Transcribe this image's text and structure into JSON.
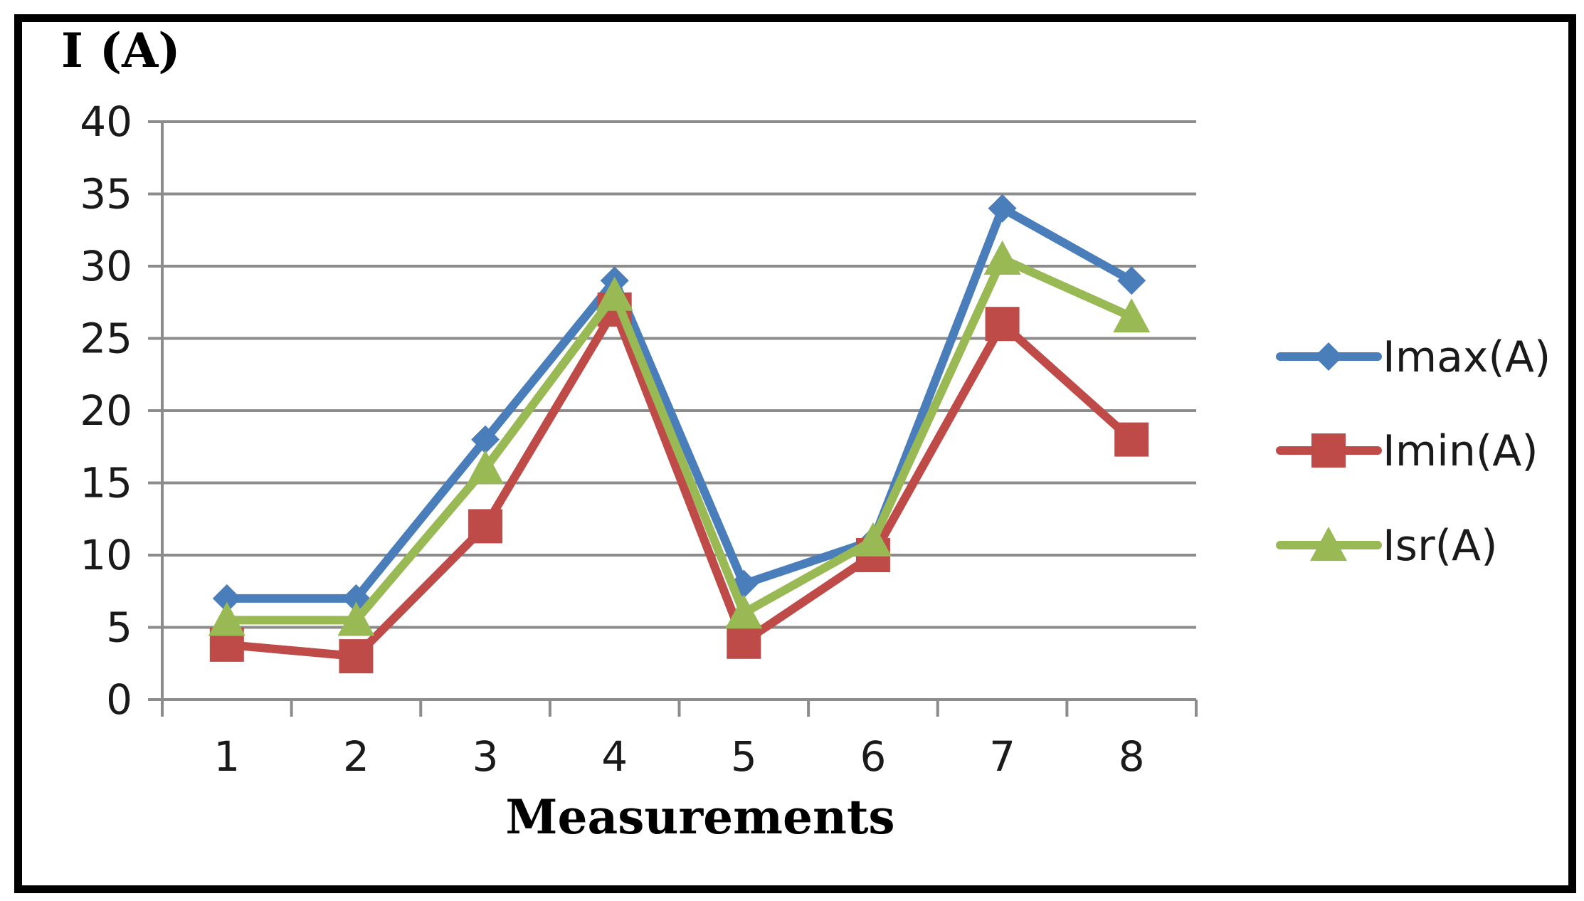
{
  "chart_data": {
    "type": "line",
    "ylabel": "I (A)",
    "xlabel": "Measurements",
    "categories": [
      "1",
      "2",
      "3",
      "4",
      "5",
      "6",
      "7",
      "8"
    ],
    "ylim": [
      0,
      40
    ],
    "yticks": [
      0,
      5,
      10,
      15,
      20,
      25,
      30,
      35,
      40
    ],
    "grid": true,
    "legend_position": "right",
    "series": [
      {
        "name": "Imax(A)",
        "color": "#4a7ebb",
        "marker": "diamond",
        "values": [
          7,
          7,
          18,
          29,
          8,
          11,
          34,
          29
        ]
      },
      {
        "name": "Imin(A)",
        "color": "#be4b48",
        "marker": "square",
        "values": [
          3.8,
          3,
          12,
          27,
          4,
          10,
          26,
          18
        ]
      },
      {
        "name": "Isr(A)",
        "color": "#98b954",
        "marker": "triangle",
        "values": [
          5.5,
          5.5,
          16,
          28,
          6,
          11,
          30.5,
          26.5
        ]
      }
    ]
  }
}
